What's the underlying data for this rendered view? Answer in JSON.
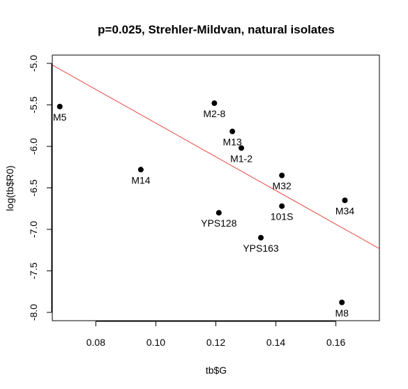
{
  "chart_data": {
    "type": "scatter",
    "title": "p=0.025, Strehler-Mildvan, natural isolates",
    "xlabel": "tb$G",
    "ylabel": "log(tb$R0)",
    "xlim": [
      0.0655,
      0.1745
    ],
    "ylim": [
      -8.1,
      -4.9
    ],
    "x_ticks": [
      0.08,
      0.1,
      0.12,
      0.14,
      0.16
    ],
    "x_tick_labels": [
      "0.08",
      "0.10",
      "0.12",
      "0.14",
      "0.16"
    ],
    "y_ticks": [
      -5.0,
      -5.5,
      -6.0,
      -6.5,
      -7.0,
      -7.5,
      -8.0
    ],
    "y_tick_labels": [
      "-5.0",
      "-5.5",
      "-6.0",
      "-6.5",
      "-7.0",
      "-7.5",
      "-8.0"
    ],
    "points": [
      {
        "label": "M5",
        "x": 0.068,
        "y": -5.52
      },
      {
        "label": "M2-8",
        "x": 0.1195,
        "y": -5.48
      },
      {
        "label": "M13",
        "x": 0.1255,
        "y": -5.82
      },
      {
        "label": "M1-2",
        "x": 0.1285,
        "y": -6.02
      },
      {
        "label": "M14",
        "x": 0.095,
        "y": -6.28
      },
      {
        "label": "M32",
        "x": 0.142,
        "y": -6.35
      },
      {
        "label": "M34",
        "x": 0.163,
        "y": -6.65
      },
      {
        "label": "101S",
        "x": 0.142,
        "y": -6.72
      },
      {
        "label": "YPS128",
        "x": 0.121,
        "y": -6.8
      },
      {
        "label": "YPS163",
        "x": 0.135,
        "y": -7.1
      },
      {
        "label": "M8",
        "x": 0.162,
        "y": -7.88
      }
    ],
    "fit_line": {
      "intercept": -3.69,
      "slope": -20.3
    },
    "colors": {
      "points": "#000000",
      "fit_line": "#e8463f",
      "axes": "#000000"
    },
    "grid": false,
    "legend": "none"
  }
}
